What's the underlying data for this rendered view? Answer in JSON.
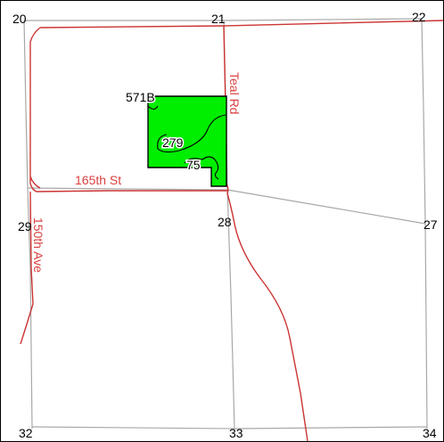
{
  "colors": {
    "background": "#ffffff",
    "frame": "#000000",
    "section_line": "#a8a8a8",
    "road": "#cc3333",
    "road_label": "#d94040",
    "parcel_fill": "#00ee00",
    "parcel_stroke": "#000000",
    "label_text": "#000000"
  },
  "map": {
    "roads": {
      "teal_rd": "Teal Rd",
      "st_165th": "165th St",
      "ave_150th": "150th Ave"
    },
    "section_labels": {
      "s20": "20",
      "s21": "21",
      "s22": "22",
      "s29": "29",
      "s28": "28",
      "s27": "27",
      "s32": "32",
      "s33": "33",
      "s34": "34"
    },
    "parcel_labels": {
      "p571b": "571B",
      "p279": "279",
      "p75": "75"
    }
  }
}
